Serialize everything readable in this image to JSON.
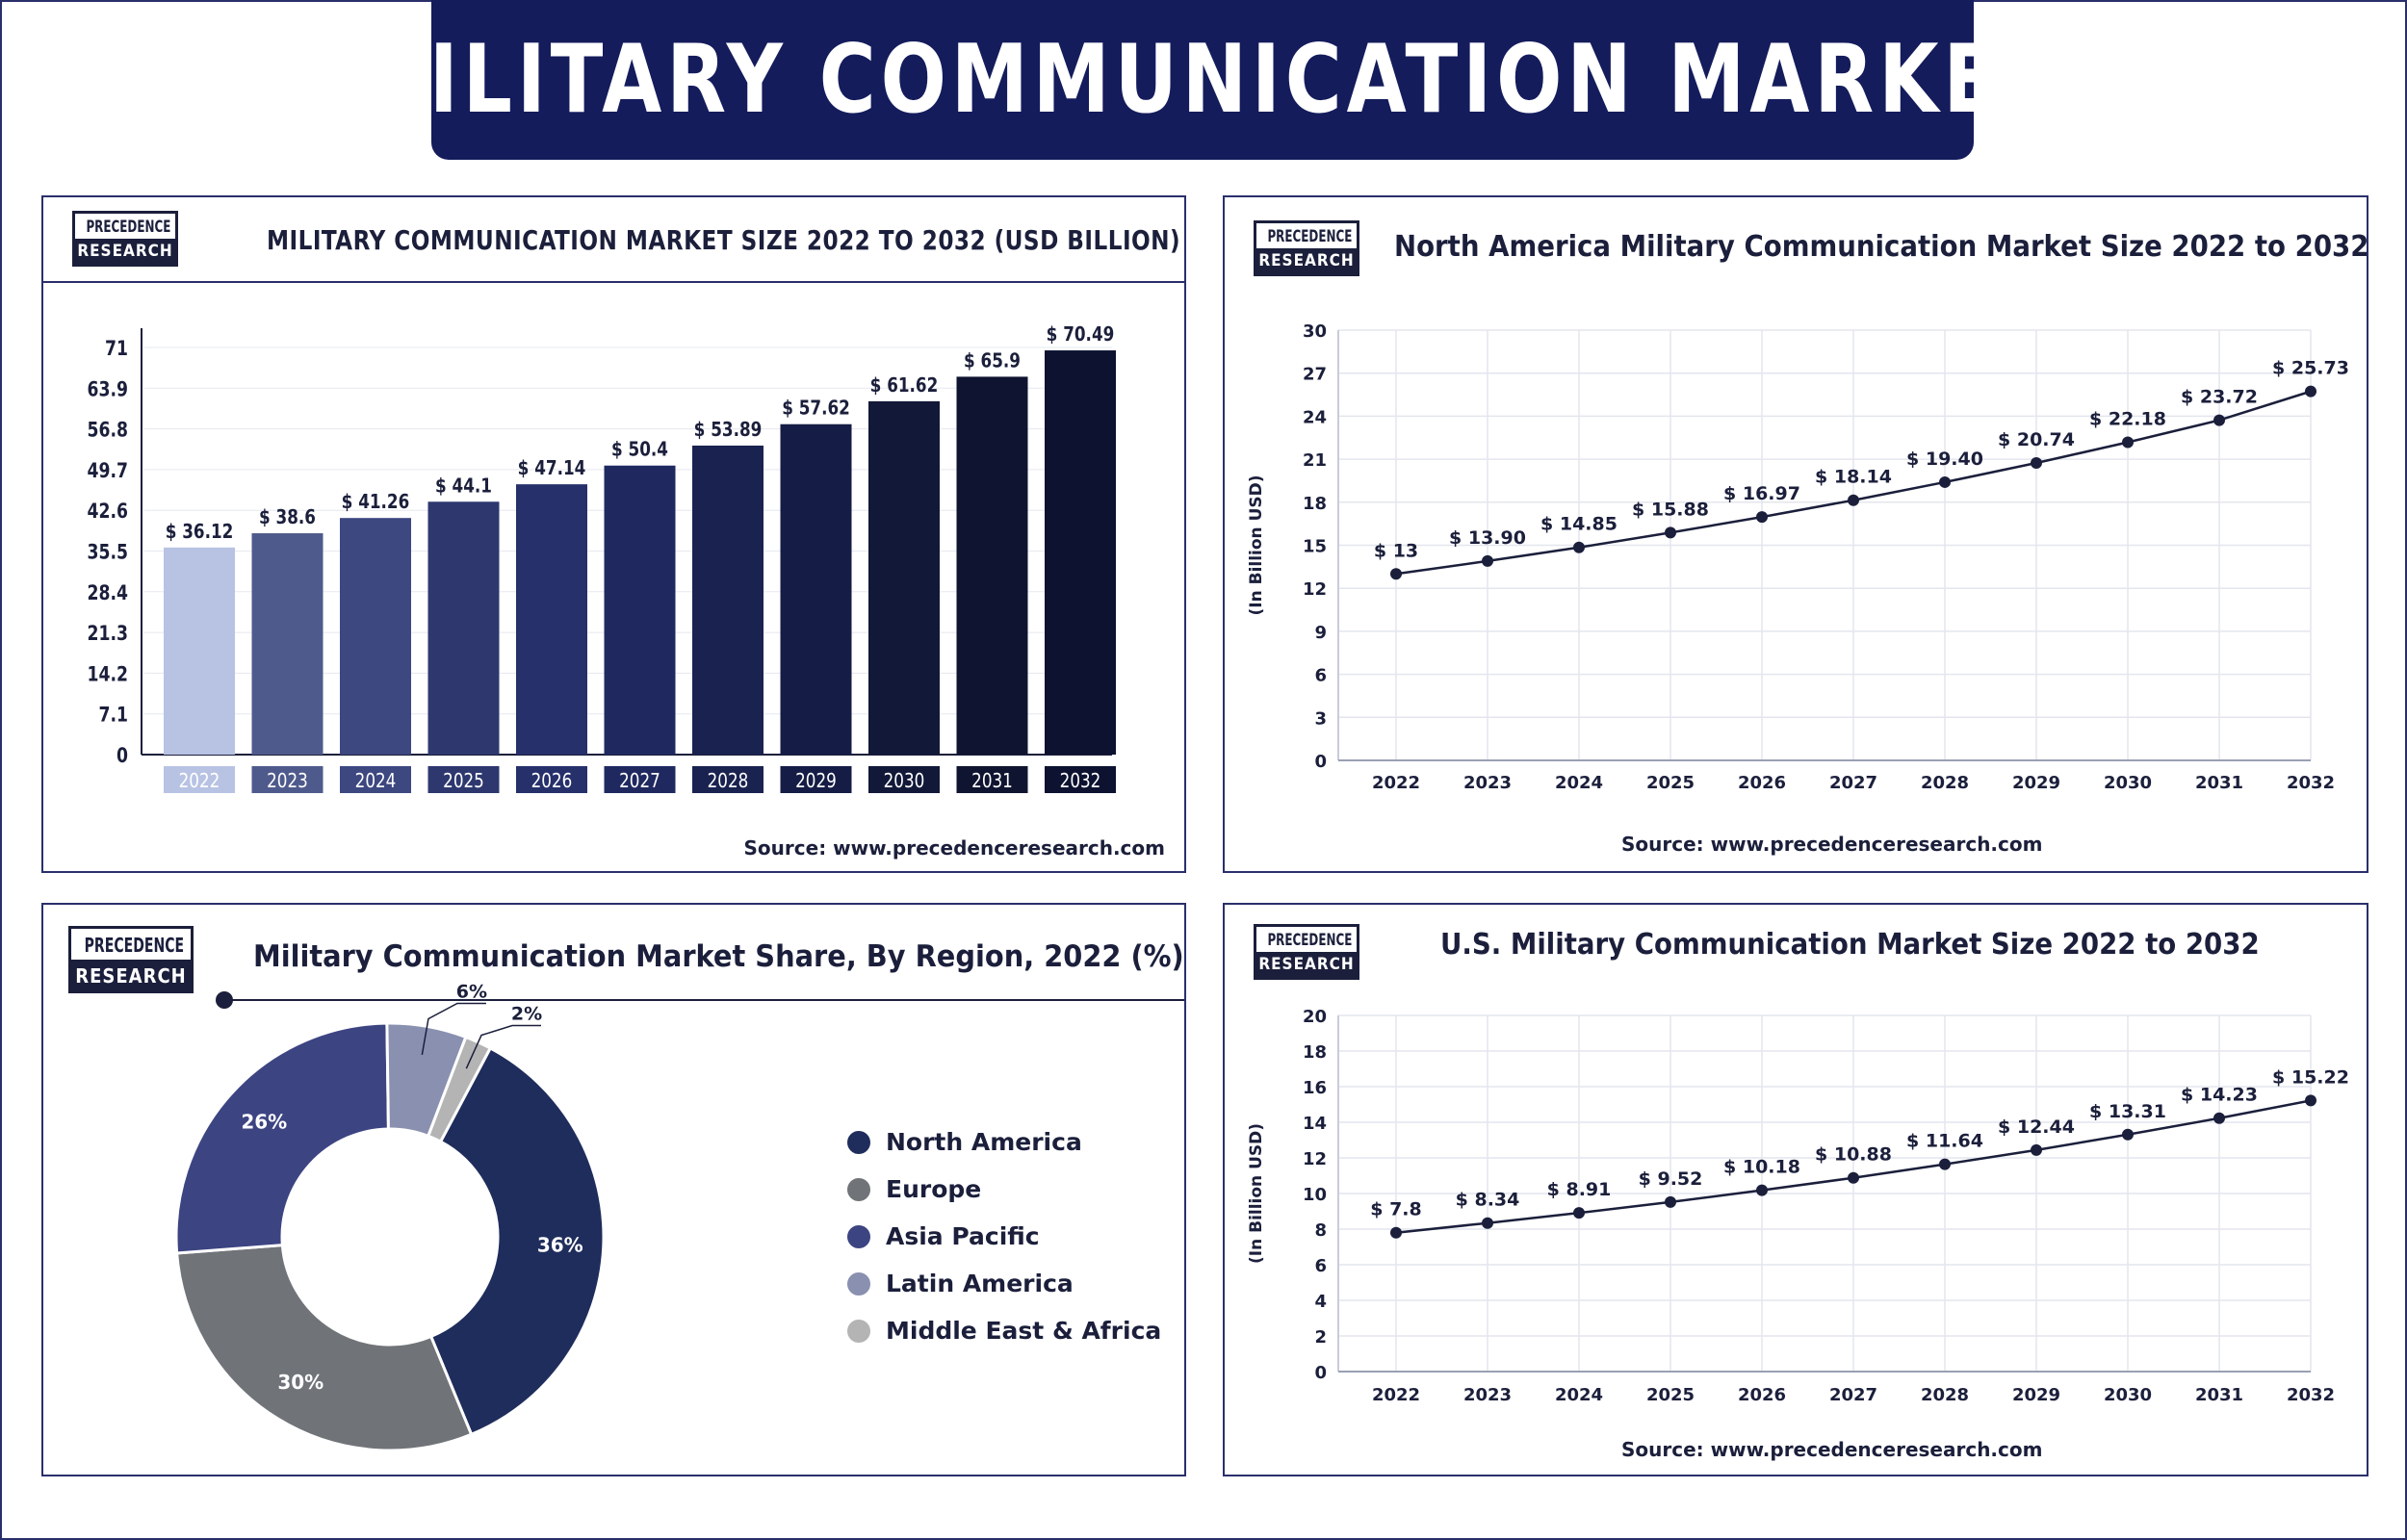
{
  "main_title": "MILITARY COMMUNICATION MARKET",
  "logo": {
    "line1": "PRECEDENCE",
    "line2": "RESEARCH"
  },
  "panels": {
    "market_size": {
      "title": "MILITARY COMMUNICATION MARKET SIZE 2022 TO 2032 (USD BILLION)",
      "source": "Source: www.precedenceresearch.com"
    },
    "north_america": {
      "title": "North America Military Communication Market Size 2022 to 2032",
      "source": "Source: www.precedenceresearch.com"
    },
    "region_share": {
      "title": "Military Communication Market Share, By Region, 2022 (%)"
    },
    "us": {
      "title": "U.S. Military Communication Market Size 2022 to 2032",
      "source": "Source: www.precedenceresearch.com"
    }
  },
  "chart_data": [
    {
      "type": "bar",
      "title": "MILITARY COMMUNICATION MARKET SIZE 2022 TO 2032 (USD BILLION)",
      "categories": [
        "2022",
        "2023",
        "2024",
        "2025",
        "2026",
        "2027",
        "2028",
        "2029",
        "2030",
        "2031",
        "2032"
      ],
      "values": [
        36.12,
        38.6,
        41.26,
        44.1,
        47.14,
        50.4,
        53.89,
        57.62,
        61.62,
        65.9,
        70.49
      ],
      "data_labels": [
        "$ 36.12",
        "$ 38.6",
        "$ 41.26",
        "$ 44.1",
        "$ 47.14",
        "$ 50.4",
        "$ 53.89",
        "$ 57.62",
        "$ 61.62",
        "$ 65.9",
        "$ 70.49"
      ],
      "yticks": [
        "0",
        "7.1",
        "14.2",
        "21.3",
        "28.4",
        "35.5",
        "42.6",
        "49.7",
        "56.8",
        "63.9",
        "71"
      ],
      "ylim": [
        0,
        71
      ],
      "colors": [
        "#b8c3e4",
        "#4f5a8c",
        "#3d4780",
        "#2e386f",
        "#26306a",
        "#1f2960",
        "#1a2250",
        "#151c45",
        "#121838",
        "#0f1430",
        "#0c1230"
      ]
    },
    {
      "type": "line",
      "title": "North America Military Communication Market Size 2022 to 2032",
      "ylabel": "(In Billion USD)",
      "x": [
        "2022",
        "2023",
        "2024",
        "2025",
        "2026",
        "2027",
        "2028",
        "2029",
        "2030",
        "2031",
        "2032"
      ],
      "values": [
        13,
        13.9,
        14.85,
        15.88,
        16.97,
        18.14,
        19.4,
        20.74,
        22.18,
        23.72,
        25.73
      ],
      "data_labels": [
        "$ 13",
        "$ 13.90",
        "$ 14.85",
        "$ 15.88",
        "$ 16.97",
        "$ 18.14",
        "$ 19.40",
        "$ 20.74",
        "$ 22.18",
        "$ 23.72",
        "$ 25.73"
      ],
      "yticks": [
        "0",
        "3",
        "6",
        "9",
        "12",
        "15",
        "18",
        "21",
        "24",
        "27",
        "30"
      ],
      "ylim": [
        0,
        30
      ],
      "grid": true
    },
    {
      "type": "pie",
      "title": "Military Communication Market Share, By Region, 2022 (%)",
      "labels": [
        "North America",
        "Europe",
        "Asia Pacific",
        "Latin America",
        "Middle East & Africa"
      ],
      "values": [
        36,
        30,
        26,
        6,
        2
      ],
      "value_labels": [
        "36%",
        "30%",
        "26%",
        "6%",
        "2%"
      ],
      "colors": [
        "#1f2d5c",
        "#707378",
        "#3c4482",
        "#8990b0",
        "#b4b4b4"
      ],
      "legend": "right"
    },
    {
      "type": "line",
      "title": "U.S. Military Communication Market Size 2022 to 2032",
      "ylabel": "(In Billion USD)",
      "x": [
        "2022",
        "2023",
        "2024",
        "2025",
        "2026",
        "2027",
        "2028",
        "2029",
        "2030",
        "2031",
        "2032"
      ],
      "values": [
        7.8,
        8.34,
        8.91,
        9.52,
        10.18,
        10.88,
        11.64,
        12.44,
        13.31,
        14.23,
        15.22
      ],
      "data_labels": [
        "$ 7.8",
        "$ 8.34",
        "$ 8.91",
        "$ 9.52",
        "$ 10.18",
        "$ 10.88",
        "$ 11.64",
        "$ 12.44",
        "$ 13.31",
        "$ 14.23",
        "$ 15.22"
      ],
      "yticks": [
        "0",
        "2",
        "4",
        "6",
        "8",
        "10",
        "12",
        "14",
        "16",
        "18",
        "20"
      ],
      "ylim": [
        0,
        20
      ],
      "grid": true
    }
  ]
}
